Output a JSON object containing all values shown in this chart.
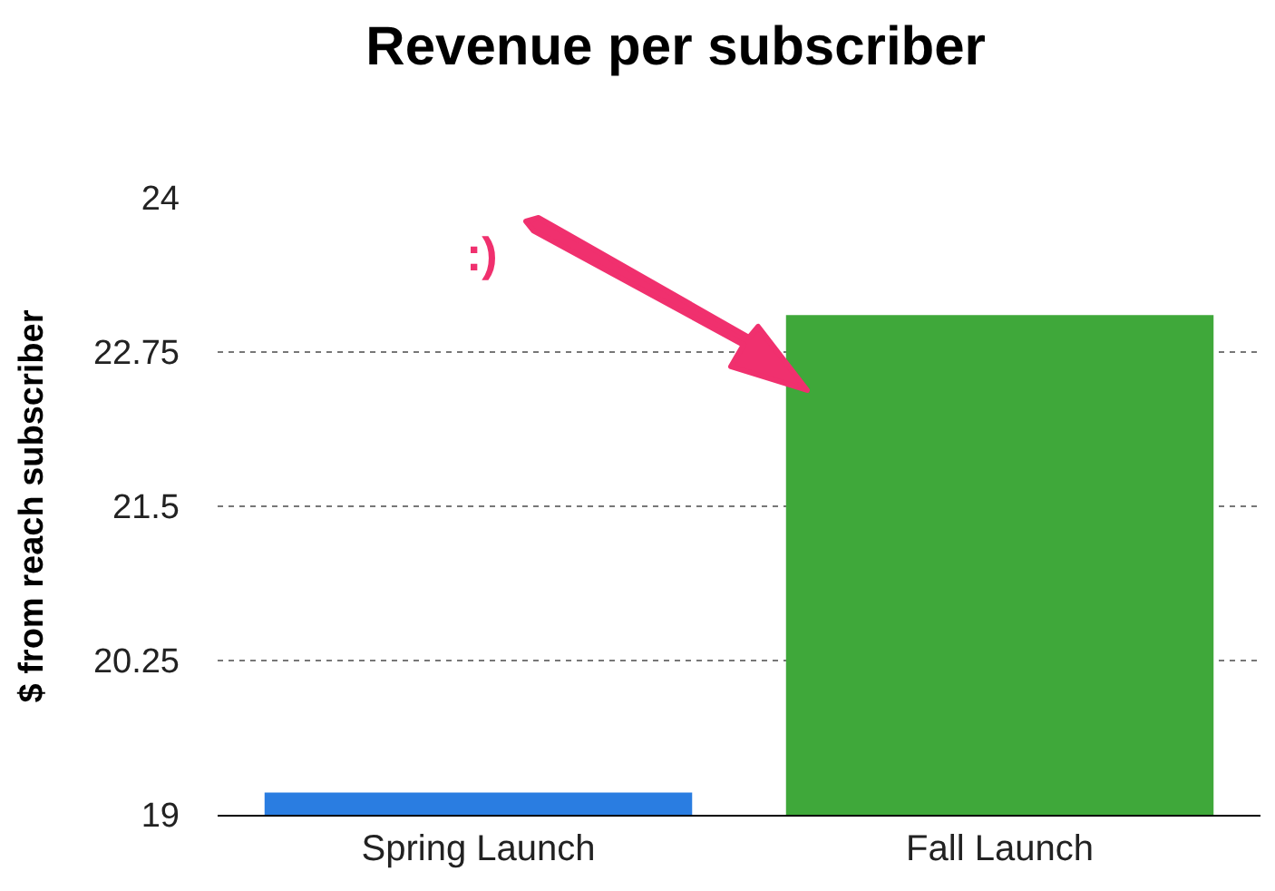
{
  "chart_data": {
    "type": "bar",
    "title": "Revenue per subscriber",
    "ylabel": "$ from reach subscriber",
    "categories": [
      "Spring Launch",
      "Fall Launch"
    ],
    "values": [
      19.18,
      23.05
    ],
    "colors": [
      "#2a7de1",
      "#3fa83a"
    ],
    "ylim": [
      19,
      24
    ],
    "yticks": [
      19,
      20.25,
      21.5,
      22.75,
      24
    ],
    "grid": "y",
    "annotations": [
      ":)"
    ]
  }
}
